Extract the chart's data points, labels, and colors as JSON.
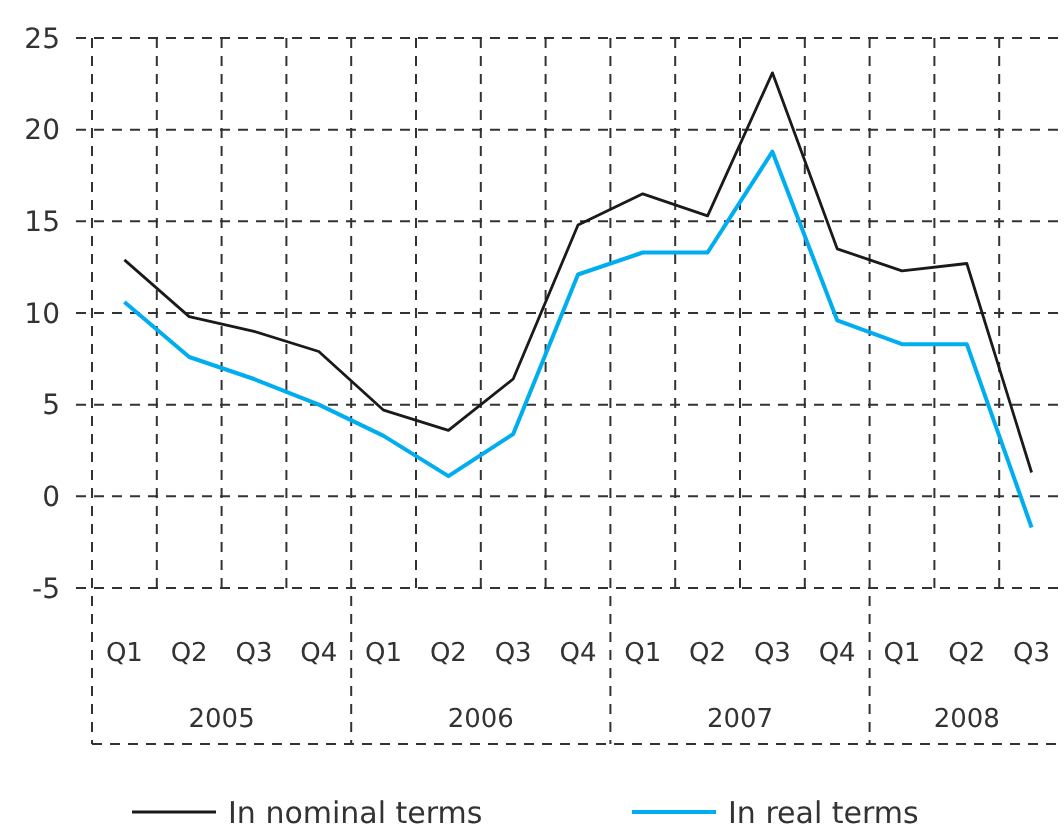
{
  "chart_data": {
    "type": "line",
    "categories": [
      "Q1",
      "Q2",
      "Q3",
      "Q4",
      "Q1",
      "Q2",
      "Q3",
      "Q4",
      "Q1",
      "Q2",
      "Q3",
      "Q4",
      "Q1",
      "Q2",
      "Q3"
    ],
    "annotations": [
      "2005",
      "2006",
      "2007",
      "2008"
    ],
    "series": [
      {
        "name": "In nominal terms",
        "color": "#1a1a1a",
        "values": [
          12.9,
          9.8,
          9.0,
          7.9,
          4.7,
          3.6,
          6.4,
          14.8,
          16.5,
          15.3,
          23.1,
          13.5,
          12.3,
          12.7,
          1.3
        ]
      },
      {
        "name": "In real terms",
        "color": "#00aeef",
        "values": [
          10.6,
          7.6,
          6.4,
          5.0,
          3.3,
          1.1,
          3.4,
          12.1,
          13.3,
          13.3,
          18.8,
          9.6,
          8.3,
          8.3,
          -1.7
        ]
      }
    ],
    "ylim": [
      -5,
      25
    ],
    "yticks": [
      -5,
      0,
      5,
      10,
      15,
      20,
      25
    ],
    "grid": true,
    "legend": "bottom",
    "marker": "none",
    "line_style": "solid"
  }
}
